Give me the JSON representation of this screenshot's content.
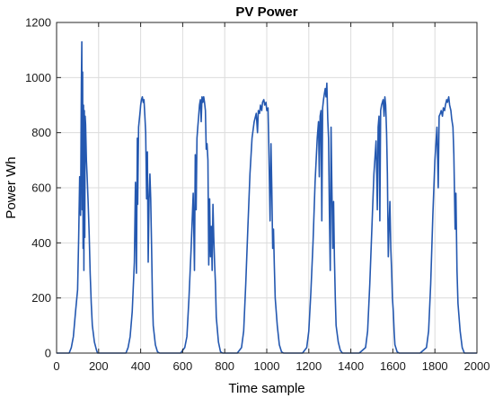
{
  "chart_data": {
    "type": "line",
    "title": "PV Power",
    "xlabel": "Time sample",
    "ylabel": "Power Wh",
    "xlim": [
      0,
      2000
    ],
    "ylim": [
      0,
      1200
    ],
    "xticks": [
      0,
      200,
      400,
      600,
      800,
      1000,
      1200,
      1400,
      1600,
      1800,
      2000
    ],
    "yticks": [
      0,
      200,
      400,
      600,
      800,
      1000,
      1200
    ],
    "grid": true,
    "legend": "none",
    "colors": {
      "series": "#2458b0"
    },
    "series": [
      {
        "x": [
          0,
          60,
          70,
          80,
          90,
          100,
          105,
          110,
          114,
          118,
          120,
          122,
          124,
          126,
          128,
          130,
          132,
          134,
          136,
          138,
          140,
          142,
          145,
          150,
          155,
          160,
          165,
          170,
          180,
          190,
          195,
          200,
          330,
          340,
          350,
          360,
          370,
          375,
          380,
          384,
          386,
          390,
          394,
          398,
          400,
          404,
          408,
          412,
          416,
          420,
          424,
          428,
          432,
          436,
          440,
          444,
          448,
          452,
          456,
          460,
          470,
          480,
          490,
          500,
          590,
          610,
          620,
          630,
          640,
          650,
          656,
          660,
          664,
          668,
          672,
          676,
          680,
          684,
          688,
          692,
          696,
          700,
          704,
          708,
          712,
          716,
          720,
          724,
          728,
          732,
          736,
          740,
          744,
          748,
          752,
          756,
          760,
          770,
          780,
          790,
          860,
          880,
          890,
          900,
          910,
          920,
          930,
          940,
          950,
          956,
          960,
          966,
          970,
          976,
          980,
          986,
          990,
          996,
          1000,
          1006,
          1010,
          1016,
          1020,
          1024,
          1028,
          1032,
          1036,
          1040,
          1050,
          1060,
          1070,
          1080,
          1170,
          1190,
          1200,
          1210,
          1220,
          1230,
          1240,
          1246,
          1250,
          1254,
          1258,
          1262,
          1266,
          1270,
          1274,
          1278,
          1282,
          1286,
          1290,
          1294,
          1298,
          1302,
          1306,
          1310,
          1314,
          1318,
          1322,
          1326,
          1330,
          1340,
          1350,
          1360,
          1380,
          1440,
          1470,
          1480,
          1490,
          1500,
          1510,
          1520,
          1526,
          1530,
          1534,
          1538,
          1542,
          1546,
          1550,
          1554,
          1558,
          1562,
          1566,
          1570,
          1574,
          1578,
          1582,
          1586,
          1590,
          1594,
          1598,
          1602,
          1606,
          1610,
          1620,
          1630,
          1640,
          1650,
          1730,
          1760,
          1770,
          1780,
          1790,
          1800,
          1810,
          1816,
          1820,
          1826,
          1830,
          1836,
          1840,
          1846,
          1850,
          1856,
          1860,
          1866,
          1870,
          1876,
          1880,
          1886,
          1890,
          1896,
          1900,
          1905,
          1910,
          1920,
          1930,
          1940,
          2000
        ],
        "y": [
          0,
          0,
          20,
          60,
          150,
          230,
          420,
          640,
          500,
          980,
          1130,
          520,
          1020,
          380,
          900,
          300,
          880,
          420,
          860,
          830,
          760,
          700,
          650,
          550,
          430,
          290,
          180,
          100,
          40,
          10,
          0,
          0,
          0,
          20,
          60,
          150,
          330,
          620,
          290,
          780,
          540,
          820,
          850,
          880,
          900,
          920,
          930,
          910,
          920,
          860,
          800,
          560,
          730,
          330,
          560,
          650,
          560,
          380,
          200,
          100,
          30,
          5,
          0,
          0,
          0,
          20,
          60,
          200,
          380,
          580,
          300,
          720,
          520,
          780,
          820,
          860,
          900,
          920,
          840,
          930,
          910,
          930,
          910,
          880,
          740,
          760,
          700,
          320,
          560,
          350,
          460,
          300,
          540,
          420,
          320,
          250,
          130,
          40,
          5,
          0,
          0,
          20,
          80,
          250,
          450,
          650,
          780,
          840,
          870,
          800,
          880,
          870,
          900,
          880,
          910,
          920,
          900,
          910,
          880,
          890,
          750,
          480,
          760,
          600,
          380,
          450,
          320,
          200,
          100,
          30,
          5,
          0,
          0,
          20,
          80,
          220,
          400,
          620,
          780,
          840,
          640,
          860,
          880,
          480,
          890,
          920,
          940,
          960,
          930,
          980,
          850,
          780,
          520,
          300,
          820,
          600,
          380,
          550,
          350,
          200,
          100,
          40,
          10,
          0,
          0,
          0,
          20,
          80,
          250,
          450,
          650,
          770,
          520,
          820,
          860,
          480,
          880,
          900,
          910,
          920,
          860,
          930,
          900,
          800,
          650,
          350,
          460,
          550,
          380,
          300,
          200,
          150,
          80,
          30,
          5,
          0,
          0,
          0,
          0,
          20,
          80,
          250,
          500,
          700,
          820,
          600,
          860,
          870,
          880,
          860,
          890,
          880,
          900,
          920,
          910,
          930,
          900,
          880,
          850,
          820,
          720,
          450,
          580,
          300,
          180,
          80,
          20,
          0,
          0
        ]
      }
    ]
  }
}
